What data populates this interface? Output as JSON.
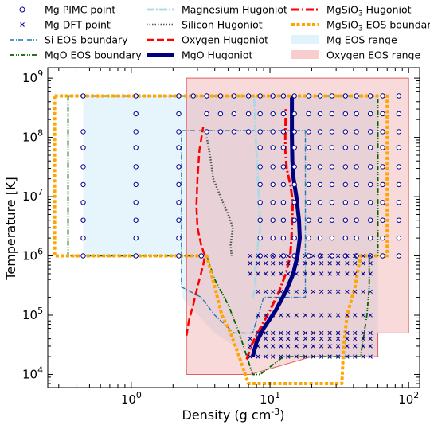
{
  "chart_data": {
    "type": "scatter",
    "xlabel": "Density (g cm",
    "xlabel_sup": "-3",
    "xlabel_end": ")",
    "ylabel": "Temperature [K]",
    "x_scale": "log",
    "y_scale": "log",
    "xlim": [
      0.25,
      120
    ],
    "ylim": [
      6000,
      1500000000
    ],
    "x_ticks": [
      {
        "value": 1,
        "base": "10",
        "exp": "0"
      },
      {
        "value": 10,
        "base": "10",
        "exp": "1"
      },
      {
        "value": 100,
        "base": "10",
        "exp": "2"
      }
    ],
    "y_ticks": [
      {
        "value": 10000,
        "base": "10",
        "exp": "4"
      },
      {
        "value": 100000,
        "base": "10",
        "exp": "5"
      },
      {
        "value": 1000000,
        "base": "10",
        "exp": "6"
      },
      {
        "value": 10000000,
        "base": "10",
        "exp": "7"
      },
      {
        "value": 100000000,
        "base": "10",
        "exp": "8"
      },
      {
        "value": 1000000000,
        "base": "10",
        "exp": "9"
      }
    ],
    "legend": [
      {
        "label": "Mg PIMC point",
        "kind": "circle",
        "color": "#00008b"
      },
      {
        "label": "Mg DFT point",
        "kind": "cross",
        "color": "#00008b"
      },
      {
        "label": "Si EOS boundary",
        "kind": "line",
        "color": "#1f77b4",
        "dash": "6 2 1 2",
        "width": 1.4
      },
      {
        "label": "MgO EOS boundary",
        "kind": "line",
        "color": "#006400",
        "dash": "6 2 1 2 1 2",
        "width": 1.8
      },
      {
        "label": "Magnesium Hugoniot",
        "kind": "line",
        "color": "#add8e6",
        "dash": "10 2 2 2",
        "width": 2.8
      },
      {
        "label": "Silicon Hugoniot",
        "kind": "line",
        "color": "#555555",
        "dash": "1.5 2",
        "width": 2.5
      },
      {
        "label": "Oxygen Hugoniot",
        "kind": "line",
        "color": "#ff0000",
        "dash": "9 4",
        "width": 2.5
      },
      {
        "label": "MgO Hugoniot",
        "kind": "line",
        "color": "#000080",
        "dash": "",
        "width": 5
      },
      {
        "label": "MgSiO",
        "label_sub": "3",
        "label_end": " Hugoniot",
        "kind": "line",
        "color": "#ff0000",
        "dash": "10 3 2 3",
        "width": 3
      },
      {
        "label": "MgSiO",
        "label_sub": "3",
        "label_end": " EOS boundary",
        "kind": "line",
        "color": "#ffa500",
        "dash": "4 2.5",
        "width": 4
      },
      {
        "label": "Mg EOS range",
        "kind": "patch",
        "color": "#e0f3fb"
      },
      {
        "label": "Oxygen EOS range",
        "kind": "patch",
        "color": "#f7cdcd"
      }
    ],
    "regions": [
      {
        "name": "Mg EOS range",
        "fill": "#bde3f5",
        "opacity": 0.38,
        "stroke": "none",
        "points": [
          [
            0.45,
            500000000
          ],
          [
            60,
            500000000
          ],
          [
            60,
            20000
          ],
          [
            20,
            20000
          ],
          [
            7.2,
            20000
          ],
          [
            4,
            50000
          ],
          [
            2.3,
            200000
          ],
          [
            2.3,
            1000000
          ],
          [
            0.45,
            1000000
          ]
        ]
      },
      {
        "name": "Oxygen EOS range",
        "fill": "#eb8c8c",
        "opacity": 0.32,
        "stroke": "#e06060",
        "points": [
          [
            2.5,
            1000000000
          ],
          [
            100,
            1000000000
          ],
          [
            100,
            50000
          ],
          [
            60,
            50000
          ],
          [
            60,
            20000
          ],
          [
            20,
            20000
          ],
          [
            7.2,
            10000
          ],
          [
            2.5,
            10000
          ]
        ]
      }
    ],
    "series": [
      {
        "name": "Si EOS boundary",
        "color": "#1f77b4",
        "dash": "6 2 1 2",
        "width": 1.4,
        "points": [
          [
            2.3,
            130000000
          ],
          [
            18,
            130000000
          ],
          [
            18,
            200000
          ],
          [
            9,
            200000
          ],
          [
            7.5,
            50000
          ],
          [
            5.5,
            50000
          ],
          [
            4,
            100000
          ],
          [
            3.2,
            200000
          ],
          [
            2.3,
            300000
          ],
          [
            2.3,
            130000000
          ]
        ]
      },
      {
        "name": "MgO EOS boundary",
        "color": "#006400",
        "dash": "6 2 1 2 1 2",
        "width": 1.8,
        "points": [
          [
            0.35,
            500000000
          ],
          [
            0.35,
            1000000
          ],
          [
            3.5,
            1000000
          ],
          [
            4,
            400000
          ],
          [
            5,
            150000
          ],
          [
            6,
            50000
          ],
          [
            7.5,
            10000
          ],
          [
            8.5,
            10000
          ],
          [
            12.5,
            20000
          ],
          [
            45,
            20000
          ],
          [
            50,
            100000
          ],
          [
            52,
            300000
          ],
          [
            52,
            1000000
          ],
          [
            60,
            1000000
          ],
          [
            60,
            500000000
          ],
          [
            0.35,
            500000000
          ]
        ]
      },
      {
        "name": "Magnesium Hugoniot",
        "color": "#add8e6",
        "dash": "10 2 2 2",
        "width": 2.8,
        "points": [
          [
            7.5,
            200000
          ],
          [
            7.9,
            300000
          ],
          [
            7.8,
            500000
          ],
          [
            8,
            1000000
          ],
          [
            8.3,
            2000000
          ],
          [
            8.5,
            3000000
          ],
          [
            8.3,
            10000000
          ],
          [
            8.1,
            30000000
          ],
          [
            7.9,
            100000000
          ],
          [
            7.7,
            500000000
          ]
        ]
      },
      {
        "name": "Silicon Hugoniot",
        "color": "#555555",
        "dash": "1.5 2",
        "width": 2.5,
        "points": [
          [
            3.5,
            100000000
          ],
          [
            3.7,
            50000000
          ],
          [
            3.9,
            20000000
          ],
          [
            4.4,
            10000000
          ],
          [
            5,
            5000000
          ],
          [
            5.4,
            3000000
          ],
          [
            5.2,
            1500000
          ],
          [
            5.3,
            1000000
          ]
        ]
      },
      {
        "name": "Oxygen Hugoniot",
        "color": "#ff0000",
        "dash": "9 4",
        "width": 2.5,
        "points": [
          [
            2.5,
            45000
          ],
          [
            2.6,
            80000
          ],
          [
            2.8,
            150000
          ],
          [
            3,
            300000
          ],
          [
            3.3,
            700000
          ],
          [
            3.4,
            1000000
          ],
          [
            3.2,
            1500000
          ],
          [
            3,
            3000000
          ],
          [
            2.95,
            7000000
          ],
          [
            3,
            20000000
          ],
          [
            3.1,
            60000000
          ],
          [
            3.3,
            150000000
          ]
        ]
      },
      {
        "name": "MgO Hugoniot",
        "color": "#000080",
        "dash": "",
        "width": 5,
        "points": [
          [
            7.5,
            20000
          ],
          [
            8,
            35000
          ],
          [
            9,
            60000
          ],
          [
            11,
            120000
          ],
          [
            13,
            250000
          ],
          [
            14.7,
            500000
          ],
          [
            15.8,
            1000000
          ],
          [
            16.4,
            2000000
          ],
          [
            16.2,
            4000000
          ],
          [
            15.5,
            10000000
          ],
          [
            14.8,
            20000000
          ],
          [
            14.5,
            40000000
          ],
          [
            14.4,
            100000000
          ],
          [
            14.4,
            500000000
          ]
        ]
      },
      {
        "name": "MgSiO3 Hugoniot",
        "color": "#ff0000",
        "dash": "10 3 2 3",
        "width": 3,
        "points": [
          [
            6.8,
            18000
          ],
          [
            7.3,
            30000
          ],
          [
            8.5,
            60000
          ],
          [
            10,
            120000
          ],
          [
            11.6,
            250000
          ],
          [
            13,
            500000
          ],
          [
            14,
            1000000
          ],
          [
            14.3,
            2000000
          ],
          [
            14.5,
            5000000
          ],
          [
            14.6,
            8000000
          ],
          [
            14.1,
            15000000
          ],
          [
            13.2,
            30000000
          ],
          [
            12.9,
            60000000
          ],
          [
            12.9,
            100000000
          ],
          [
            13,
            300000000
          ]
        ]
      },
      {
        "name": "MgSiO3 EOS boundary",
        "color": "#ffa500",
        "dash": "4 2.5",
        "width": 4,
        "points": [
          [
            0.28,
            500000000
          ],
          [
            70,
            500000000
          ],
          [
            70,
            1000000
          ],
          [
            45,
            1000000
          ],
          [
            41,
            300000
          ],
          [
            36,
            100000
          ],
          [
            34,
            30000
          ],
          [
            33,
            7000
          ],
          [
            7,
            7000
          ],
          [
            6,
            20000
          ],
          [
            5.2,
            50000
          ],
          [
            4.5,
            100000
          ],
          [
            4,
            300000
          ],
          [
            3.5,
            1000000
          ],
          [
            0.28,
            1000000
          ],
          [
            0.28,
            500000000
          ]
        ]
      }
    ],
    "pimc_points": {
      "note": "Mg PIMC point grid",
      "rows": [
        {
          "T": 500000000,
          "rho": [
            0.45,
            1.08,
            2.2,
            2.8,
            3.5,
            4.4,
            5.5,
            7.0,
            8.5,
            10.5,
            12.5,
            15,
            19,
            23,
            28,
            35,
            42,
            53,
            65,
            85
          ]
        },
        {
          "T": 250000000,
          "rho": [
            1.08,
            2.2,
            3.5,
            4.4,
            5.5,
            7.0,
            8.5,
            10.5,
            12.5,
            15,
            19,
            23,
            28,
            35,
            42,
            53,
            65,
            85
          ]
        },
        {
          "T": 125000000,
          "rho": [
            0.45,
            1.08,
            2.2,
            3.5,
            4.4,
            5.5,
            7.0,
            8.5,
            10.5,
            12.5,
            15,
            19,
            23,
            28,
            35,
            42,
            53,
            65,
            85
          ]
        },
        {
          "T": 67000000,
          "rho": [
            0.45,
            1.08,
            2.2,
            8.5,
            10.5,
            12.5,
            15,
            19,
            23,
            28,
            35,
            42,
            53,
            65,
            85
          ]
        },
        {
          "T": 32000000,
          "rho": [
            0.45,
            1.08,
            2.2,
            8.5,
            10.5,
            12.5,
            15,
            19,
            23,
            28,
            35,
            42,
            53,
            65,
            85
          ]
        },
        {
          "T": 16000000,
          "rho": [
            0.45,
            1.08,
            2.2,
            8.5,
            10.5,
            12.5,
            15,
            19,
            23,
            28,
            35,
            42,
            53,
            65,
            85
          ]
        },
        {
          "T": 8000000,
          "rho": [
            0.45,
            1.08,
            2.2,
            8.5,
            10.5,
            12.5,
            15,
            19,
            23,
            28,
            35,
            42,
            53,
            65,
            85
          ]
        },
        {
          "T": 4000000,
          "rho": [
            0.45,
            1.08,
            2.2,
            8.5,
            10.5,
            12.5,
            15,
            19,
            23,
            28,
            35,
            42,
            53,
            65,
            85
          ]
        },
        {
          "T": 2000000,
          "rho": [
            0.45,
            1.08,
            2.2,
            8.5,
            10.5,
            12.5,
            15,
            19,
            23,
            28,
            35,
            42,
            53,
            65,
            85
          ]
        },
        {
          "T": 1000000,
          "rho": [
            0.45,
            1.08,
            2.2,
            3.2,
            8.5,
            10.5,
            12.5,
            15,
            19,
            23,
            28,
            35,
            42,
            53,
            65,
            85
          ]
        }
      ]
    },
    "dft_points": {
      "note": "Mg DFT point grid",
      "rows": [
        {
          "T": 1000000,
          "rho": [
            7.2,
            8.2,
            9.3,
            10.5,
            12,
            13.5,
            15.5,
            18,
            20.5,
            23.5,
            27,
            31,
            36,
            41,
            47,
            53
          ]
        },
        {
          "T": 750000,
          "rho": [
            7.2,
            8.2,
            9.3,
            10.5,
            12,
            13.5,
            15.5,
            18,
            20.5,
            23.5,
            27,
            31,
            36,
            41,
            47,
            53
          ]
        },
        {
          "T": 500000,
          "rho": [
            7.2,
            8.2,
            9.3,
            10.5,
            12,
            13.5,
            15.5,
            18,
            20.5,
            23.5,
            27,
            31,
            36,
            41,
            47,
            53
          ]
        },
        {
          "T": 250000,
          "rho": [
            8.2,
            9.3,
            10.5,
            12,
            13.5,
            15.5,
            18,
            20.5,
            23.5,
            27,
            31,
            36,
            41,
            47,
            53
          ]
        },
        {
          "T": 100000,
          "rho": [
            8.2,
            9.3,
            10.5,
            12,
            13.5,
            15.5,
            18,
            20.5,
            23.5,
            27,
            31,
            36,
            41,
            47,
            53
          ]
        },
        {
          "T": 50000,
          "rho": [
            8.2,
            9.3,
            10.5,
            12,
            13.5,
            15.5,
            18,
            20.5,
            23.5,
            27,
            31,
            36,
            41,
            47,
            53
          ]
        },
        {
          "T": 40000,
          "rho": [
            7.2,
            8.2,
            9.3,
            10.5,
            12,
            13.5,
            15.5,
            18,
            20.5,
            23.5,
            27,
            31,
            36,
            41,
            47,
            53
          ]
        },
        {
          "T": 30000,
          "rho": [
            7.2,
            8.2,
            9.3,
            10.5,
            12,
            13.5,
            15.5,
            18,
            20.5,
            23.5,
            27,
            31,
            36,
            41,
            47,
            53
          ]
        },
        {
          "T": 20000,
          "rho": [
            7.2,
            8.2,
            9.3,
            10.5,
            12,
            13.5,
            15.5,
            18,
            20.5,
            23.5,
            27,
            31,
            36,
            41,
            47,
            53
          ]
        }
      ]
    }
  }
}
